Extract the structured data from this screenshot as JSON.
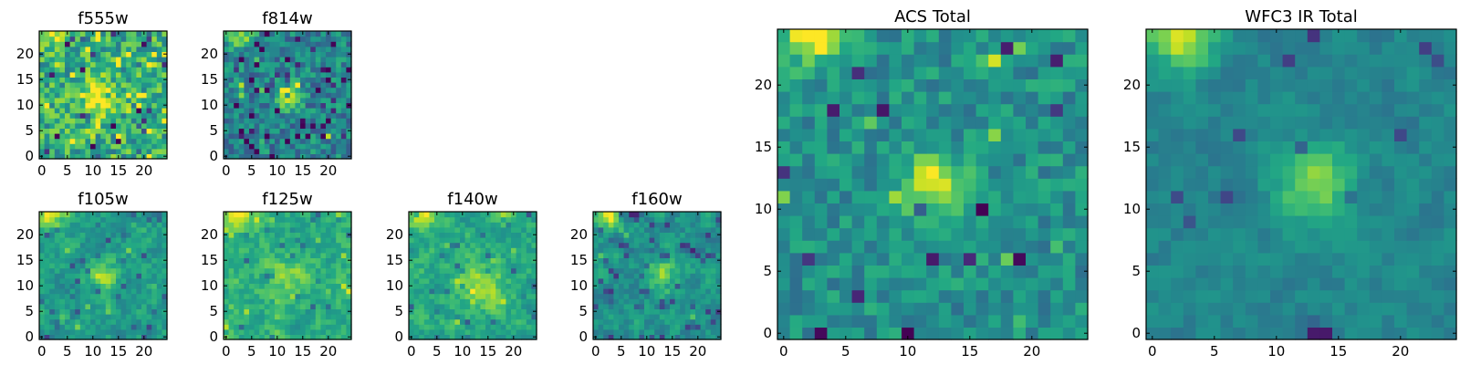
{
  "chart_data": [
    {
      "type": "heatmap",
      "title": "f555w",
      "seed": 11,
      "size": 25,
      "cx": 11,
      "cy": 12,
      "peak": 0.45,
      "sigma": 2.2,
      "noise": 0.45,
      "base": 0.62,
      "corner": 0.35,
      "darkfrac": 0.05,
      "brightfrac": 0.08,
      "blur": 0,
      "xticks": [
        0,
        5,
        10,
        15,
        20
      ],
      "yticks": [
        0,
        5,
        10,
        15,
        20
      ],
      "xlim": [
        0,
        25
      ],
      "ylim": [
        0,
        25
      ]
    },
    {
      "type": "heatmap",
      "title": "f814w",
      "seed": 23,
      "size": 25,
      "cx": 12,
      "cy": 12,
      "peak": 0.55,
      "sigma": 1.6,
      "noise": 0.38,
      "base": 0.45,
      "corner": 0.55,
      "darkfrac": 0.06,
      "brightfrac": 0.02,
      "blur": 0,
      "xticks": [
        0,
        5,
        10,
        15,
        20
      ],
      "yticks": [
        0,
        5,
        10,
        15,
        20
      ],
      "xlim": [
        0,
        25
      ],
      "ylim": [
        0,
        25
      ]
    },
    {
      "type": "heatmap",
      "title": "f105w",
      "seed": 37,
      "size": 25,
      "cx": 12,
      "cy": 12,
      "peak": 0.35,
      "sigma": 2.0,
      "noise": 0.35,
      "base": 0.55,
      "corner": 0.55,
      "darkfrac": 0.05,
      "brightfrac": 0.02,
      "blur": 1,
      "xticks": [
        0,
        5,
        10,
        15,
        20
      ],
      "yticks": [
        0,
        5,
        10,
        15,
        20
      ],
      "xlim": [
        0,
        25
      ],
      "ylim": [
        0,
        25
      ]
    },
    {
      "type": "heatmap",
      "title": "f125w",
      "seed": 41,
      "size": 25,
      "cx": 12,
      "cy": 12,
      "peak": 0.2,
      "sigma": 2.5,
      "noise": 0.35,
      "base": 0.62,
      "corner": 0.5,
      "darkfrac": 0.03,
      "brightfrac": 0.04,
      "blur": 1,
      "xticks": [
        0,
        5,
        10,
        15,
        20
      ],
      "yticks": [
        0,
        5,
        10,
        15,
        20
      ],
      "xlim": [
        0,
        25
      ],
      "ylim": [
        0,
        25
      ]
    },
    {
      "type": "heatmap",
      "title": "f140w",
      "seed": 53,
      "size": 25,
      "cx": 14,
      "cy": 10,
      "peak": 0.3,
      "sigma": 3.0,
      "noise": 0.35,
      "base": 0.6,
      "corner": 0.5,
      "darkfrac": 0.05,
      "brightfrac": 0.04,
      "blur": 1,
      "xticks": [
        0,
        5,
        10,
        15,
        20
      ],
      "yticks": [
        0,
        5,
        10,
        15,
        20
      ],
      "xlim": [
        0,
        25
      ],
      "ylim": [
        0,
        25
      ]
    },
    {
      "type": "heatmap",
      "title": "f160w",
      "seed": 67,
      "size": 25,
      "cx": 13,
      "cy": 12,
      "peak": 0.3,
      "sigma": 2.2,
      "noise": 0.35,
      "base": 0.52,
      "corner": 0.55,
      "darkfrac": 0.06,
      "brightfrac": 0.02,
      "blur": 1,
      "xticks": [
        0,
        5,
        10,
        15,
        20
      ],
      "yticks": [
        0,
        5,
        10,
        15,
        20
      ],
      "xlim": [
        0,
        25
      ],
      "ylim": [
        0,
        25
      ]
    },
    {
      "type": "heatmap",
      "title": "ACS Total",
      "seed": 79,
      "size": 25,
      "cx": 12,
      "cy": 12,
      "peak": 0.45,
      "sigma": 1.8,
      "noise": 0.28,
      "base": 0.5,
      "corner": 0.5,
      "darkfrac": 0.03,
      "brightfrac": 0.01,
      "blur": 0,
      "xticks": [
        0,
        5,
        10,
        15,
        20
      ],
      "yticks": [
        0,
        5,
        10,
        15,
        20
      ],
      "xlim": [
        0,
        25
      ],
      "ylim": [
        0,
        25
      ]
    },
    {
      "type": "heatmap",
      "title": "WFC3 IR Total",
      "seed": 97,
      "size": 25,
      "cx": 13,
      "cy": 12,
      "peak": 0.38,
      "sigma": 2.2,
      "noise": 0.22,
      "base": 0.45,
      "corner": 0.55,
      "darkfrac": 0.03,
      "brightfrac": 0.0,
      "blur": 1,
      "xticks": [
        0,
        5,
        10,
        15,
        20
      ],
      "yticks": [
        0,
        5,
        10,
        15,
        20
      ],
      "xlim": [
        0,
        25
      ],
      "ylim": [
        0,
        25
      ]
    }
  ]
}
